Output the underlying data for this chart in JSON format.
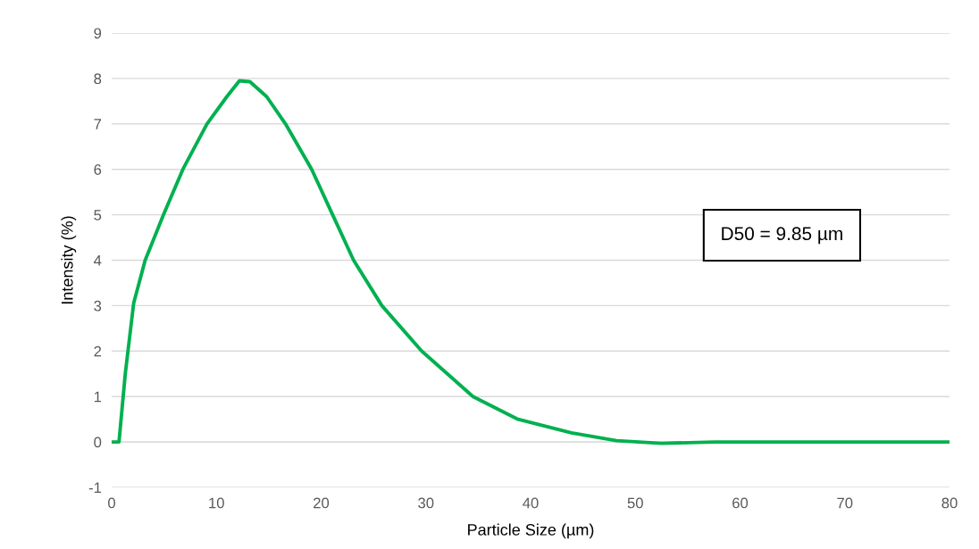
{
  "chart_data": {
    "type": "line",
    "xlabel": "Particle Size (µm)",
    "ylabel": "Intensity (%)",
    "annotations": [
      "D50 = 9.85 µm"
    ],
    "series": [
      {
        "color": "#00b050",
        "x": [
          0,
          0.7,
          1.3,
          2.1,
          3.2,
          4.95,
          6.8,
          9.1,
          11,
          12.2,
          13.2,
          14.8,
          16.6,
          19.1,
          21.1,
          23.1,
          25.8,
          29.6,
          34.5,
          38.8,
          43.9,
          48.2,
          52.5,
          57.6,
          65,
          80
        ],
        "values": [
          0,
          0,
          1.5,
          3.05,
          4,
          5,
          6,
          7,
          7.6,
          7.95,
          7.93,
          7.6,
          7,
          6,
          5,
          4,
          3,
          2,
          1,
          0.5,
          0.2,
          0.03,
          -0.03,
          0,
          0,
          0
        ]
      }
    ],
    "xlim": [
      0,
      80
    ],
    "ylim": [
      -1,
      9
    ],
    "xticks": [
      0,
      10,
      20,
      30,
      40,
      50,
      60,
      70,
      80
    ],
    "yticks": [
      -1,
      0,
      1,
      2,
      3,
      4,
      5,
      6,
      7,
      8,
      9
    ],
    "grid": "y",
    "legend": false,
    "marker": "none",
    "line_style": "solid"
  }
}
